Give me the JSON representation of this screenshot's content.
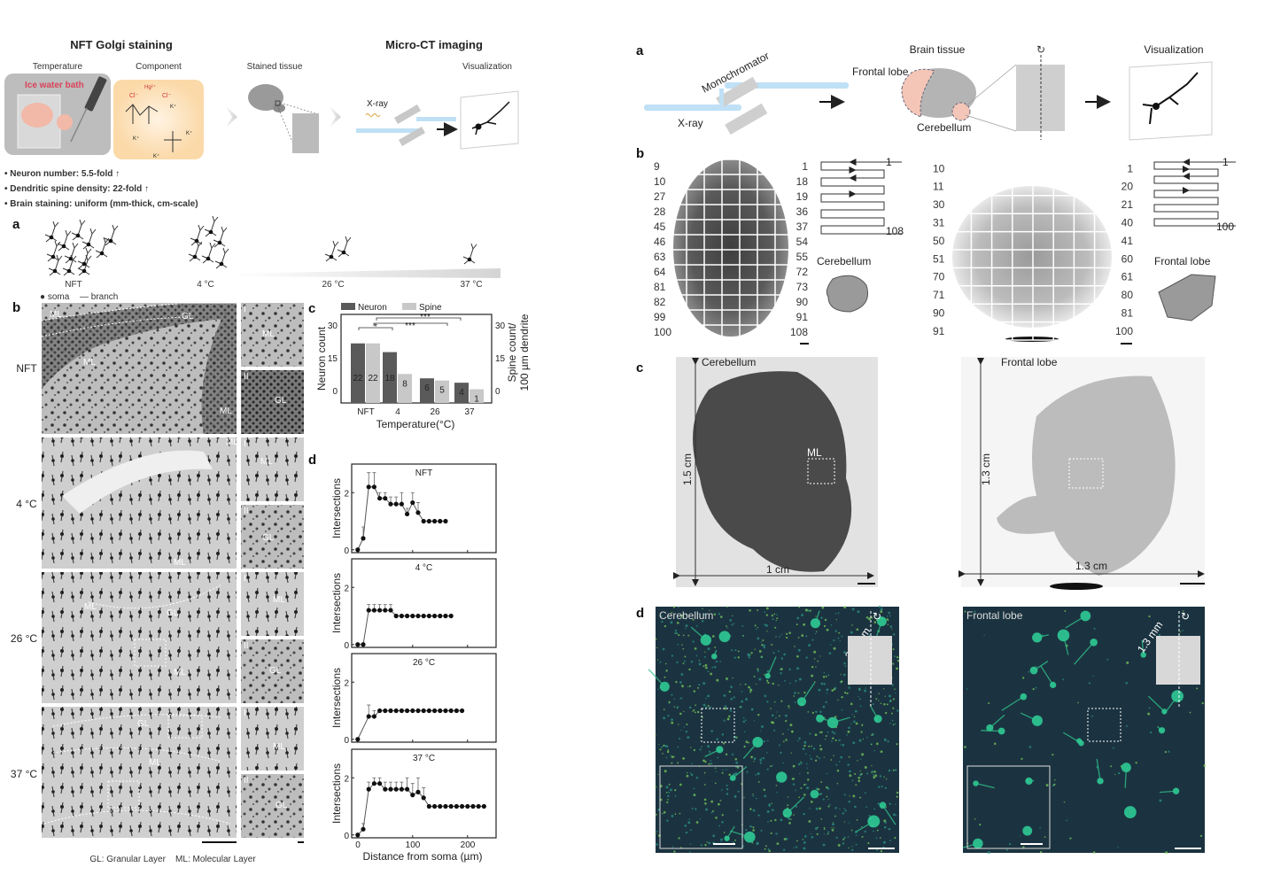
{
  "left": {
    "header": {
      "title_staining": "NFT Golgi staining",
      "title_imaging": "Micro-CT imaging",
      "temperature": "Temperature",
      "component": "Component",
      "stained_tissue": "Stained tissue",
      "visualization": "Visualization",
      "ice_water_bath": "Ice water bath",
      "xray": "X-ray",
      "chem_hg": "Hg²⁺",
      "chem_cl": "Cl⁻",
      "chem_k": "K⁺"
    },
    "bullets": [
      "• Neuron number: 5.5-fold ↑",
      "• Dendritic spine density: 22-fold ↑",
      "• Brain staining: uniform (mm-thick, cm-scale)"
    ],
    "panel_a": {
      "label": "a",
      "conditions": [
        "NFT",
        "4 °C",
        "26 °C",
        "37 °C"
      ],
      "legend_soma": "● soma",
      "legend_branch": "— branch"
    },
    "panel_b": {
      "label": "b",
      "rows": [
        "NFT",
        "4 °C",
        "26 °C",
        "37 °C"
      ],
      "layer_ml": "ML",
      "layer_gl": "GL",
      "inset_1": "I",
      "inset_2": "II",
      "footer": "GL: Granular Layer    ML: Molecular Layer"
    },
    "panel_c_label": "c",
    "panel_d_label": "d"
  },
  "chart_data": [
    {
      "type": "bar",
      "categories": [
        "NFT",
        "4",
        "26",
        "37"
      ],
      "series": [
        {
          "name": "Neuron",
          "values": [
            22,
            18,
            6,
            4
          ],
          "color": "#5a5a5a"
        },
        {
          "name": "Spine",
          "values": [
            22,
            8,
            5,
            1
          ],
          "color": "#c8c8c8"
        }
      ],
      "data_labels": {
        "Neuron": [
          "22",
          "18",
          "6",
          "4"
        ],
        "Spine": [
          "22",
          "8",
          "5",
          "1"
        ]
      },
      "xlabel": "Temperature(°C)",
      "ylabel": "Neuron count",
      "y2label_1": "Spine count/",
      "y2label_2": "100 µm dendrite",
      "ylim": [
        -5,
        35
      ],
      "yticks": [
        "0",
        "15",
        "30"
      ],
      "legend": "top",
      "significance": [
        "*",
        "***",
        "***"
      ]
    },
    {
      "type": "line",
      "title": "NFT",
      "ylabel": "Intersections",
      "xlim": [
        -11,
        252
      ],
      "ylim": [
        -0.1,
        3
      ],
      "yticks": [
        "0",
        "2"
      ],
      "x": [
        0,
        10,
        20,
        30,
        40,
        50,
        60,
        70,
        80,
        90,
        100,
        110,
        120,
        130,
        140,
        150,
        160
      ],
      "y": [
        0,
        0.4,
        2.2,
        2.2,
        1.8,
        1.8,
        1.6,
        1.6,
        1.6,
        1.25,
        1.65,
        1.3,
        1,
        1,
        1,
        1,
        1
      ],
      "err": [
        0,
        0.4,
        0.5,
        0.5,
        0.2,
        0.2,
        0.25,
        0.25,
        0.4,
        0.2,
        0.35,
        0.35,
        0,
        0,
        0,
        0,
        0
      ]
    },
    {
      "type": "line",
      "title": "4 °C",
      "ylabel": "Intersections",
      "xlim": [
        -11,
        252
      ],
      "ylim": [
        -0.1,
        3
      ],
      "yticks": [
        "0",
        "2"
      ],
      "x": [
        0,
        10,
        20,
        30,
        40,
        50,
        60,
        70,
        80,
        90,
        100,
        110,
        120,
        130,
        140,
        150,
        160,
        170
      ],
      "y": [
        0,
        0,
        1.2,
        1.2,
        1.2,
        1.2,
        1.2,
        1,
        1,
        1,
        1,
        1,
        1,
        1,
        1,
        1,
        1,
        1
      ],
      "err": [
        0,
        0,
        0.2,
        0.2,
        0.2,
        0.2,
        0.2,
        0,
        0,
        0,
        0,
        0,
        0,
        0,
        0,
        0,
        0,
        0
      ]
    },
    {
      "type": "line",
      "title": "26 °C",
      "ylabel": "Intersections",
      "xlim": [
        -11,
        252
      ],
      "ylim": [
        -0.1,
        3
      ],
      "yticks": [
        "0",
        "2"
      ],
      "x": [
        0,
        20,
        30,
        40,
        50,
        60,
        70,
        80,
        90,
        100,
        110,
        120,
        130,
        140,
        150,
        160,
        170,
        180,
        190
      ],
      "y": [
        0,
        0.8,
        0.8,
        1,
        1,
        1,
        1,
        1,
        1,
        1,
        1,
        1,
        1,
        1,
        1,
        1,
        1,
        1,
        1
      ],
      "err": [
        0,
        0.4,
        0.2,
        0,
        0,
        0,
        0,
        0,
        0,
        0,
        0,
        0,
        0,
        0,
        0,
        0,
        0,
        0,
        0
      ]
    },
    {
      "type": "line",
      "title": "37 °C",
      "ylabel": "Intersections",
      "xlabel": "Distance from soma (µm)",
      "xlim": [
        -11,
        252
      ],
      "ylim": [
        -0.1,
        3
      ],
      "yticks": [
        "0",
        "2"
      ],
      "xticks": [
        "0",
        "100",
        "200"
      ],
      "x": [
        0,
        10,
        20,
        30,
        40,
        50,
        60,
        70,
        80,
        90,
        100,
        110,
        120,
        130,
        140,
        150,
        160,
        170,
        180,
        190,
        200,
        210,
        220,
        230
      ],
      "y": [
        0,
        0.2,
        1.6,
        1.8,
        1.8,
        1.6,
        1.6,
        1.6,
        1.6,
        1.6,
        1.4,
        1.5,
        1.3,
        1,
        1,
        1,
        1,
        1,
        1,
        1,
        1,
        1,
        1,
        1
      ],
      "err": [
        0,
        0.2,
        0.25,
        0.2,
        0.2,
        0.25,
        0.25,
        0.25,
        0.25,
        0.4,
        0.4,
        0.5,
        0.35,
        0,
        0,
        0,
        0,
        0,
        0,
        0,
        0,
        0,
        0,
        0
      ]
    }
  ],
  "right": {
    "panel_a": {
      "label": "a",
      "monochromator": "Monochromator",
      "xray": "X-ray",
      "brain_tissue": "Brain tissue",
      "frontal_lobe": "Frontal lobe",
      "cerebellum": "Cerebellum",
      "visualization": "Visualization"
    },
    "panel_b": {
      "label": "b",
      "cerebellum": {
        "name": "Cerebellum",
        "left_numbers": [
          "9",
          "10",
          "27",
          "28",
          "45",
          "46",
          "63",
          "64",
          "81",
          "82",
          "99",
          "100"
        ],
        "right_numbers": [
          "1",
          "18",
          "19",
          "36",
          "37",
          "54",
          "55",
          "72",
          "73",
          "90",
          "91",
          "108"
        ],
        "scan_start": "1",
        "scan_end": "108"
      },
      "frontal": {
        "name": "Frontal lobe",
        "left_numbers": [
          "10",
          "11",
          "30",
          "31",
          "50",
          "51",
          "70",
          "71",
          "90",
          "91"
        ],
        "right_numbers": [
          "1",
          "20",
          "21",
          "40",
          "41",
          "60",
          "61",
          "80",
          "81",
          "100"
        ],
        "scan_start": "1",
        "scan_end": "100"
      }
    },
    "panel_c": {
      "label": "c",
      "cerebellum": "Cerebellum",
      "cb_height": "1.5 cm",
      "cb_width": "1 cm",
      "roi": "ML",
      "frontal": "Frontal lobe",
      "fl_height": "1.3 cm",
      "fl_width": "1.3 cm"
    },
    "panel_d": {
      "label": "d",
      "cerebellum": "Cerebellum",
      "cb_depth": "2.3 mm",
      "frontal": "Frontal lobe",
      "fl_depth": "1.3 mm",
      "background": "#1b3340",
      "signal": "#2fd39a"
    }
  }
}
